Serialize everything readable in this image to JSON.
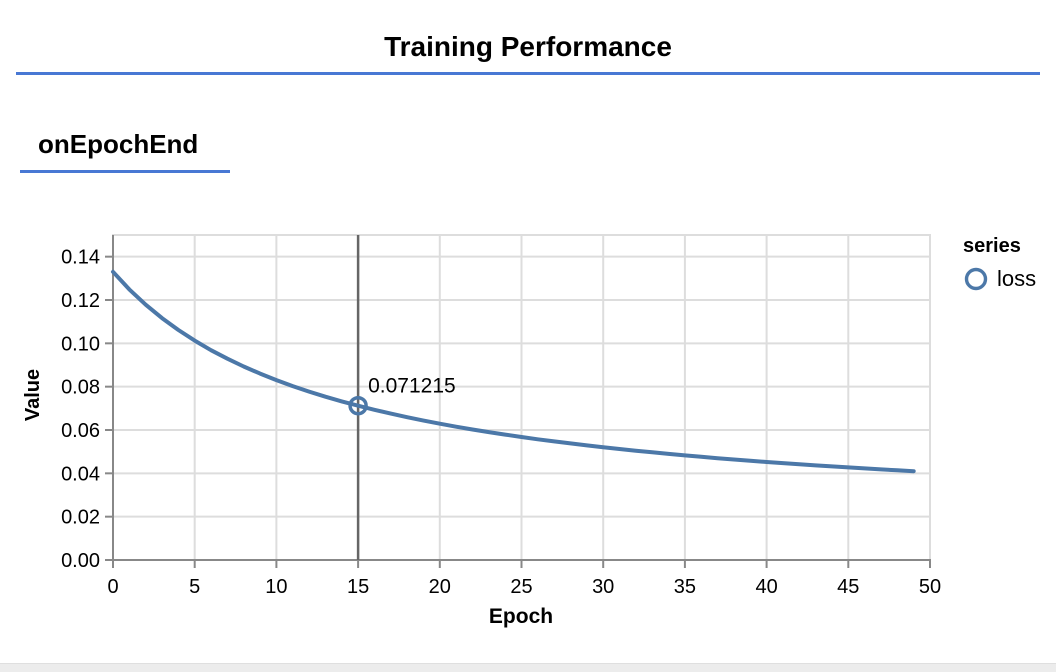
{
  "page": {
    "title": "Training Performance",
    "section_label": "onEpochEnd"
  },
  "colors": {
    "accent_rule": "#4878d4",
    "series_line": "#4c78a8",
    "grid": "#dddddd",
    "axis": "#888888",
    "cursor_rule": "#666666",
    "bottom_strip": "#ececec"
  },
  "chart_data": {
    "type": "line",
    "xlabel": "Epoch",
    "ylabel": "Value",
    "xlim": [
      0,
      50
    ],
    "ylim": [
      0,
      0.15
    ],
    "grid": true,
    "xticks": [
      0,
      5,
      10,
      15,
      20,
      25,
      30,
      35,
      40,
      45,
      50
    ],
    "xtick_labels": [
      "0",
      "5",
      "10",
      "15",
      "20",
      "25",
      "30",
      "35",
      "40",
      "45",
      "50"
    ],
    "yticks": [
      0,
      0.02,
      0.04,
      0.06,
      0.08,
      0.1,
      0.12,
      0.14
    ],
    "ytick_labels": [
      "0.00",
      "0.02",
      "0.04",
      "0.06",
      "0.08",
      "0.10",
      "0.12",
      "0.14"
    ],
    "legend": {
      "title": "series",
      "position": "right",
      "entries": [
        {
          "label": "loss",
          "color": "#4c78a8",
          "symbol": "open-circle"
        }
      ]
    },
    "series": [
      {
        "name": "loss",
        "color": "#4c78a8",
        "x": [
          0,
          1,
          2,
          3,
          4,
          5,
          6,
          7,
          8,
          9,
          10,
          11,
          12,
          13,
          14,
          15,
          16,
          17,
          18,
          19,
          20,
          21,
          22,
          23,
          24,
          25,
          26,
          27,
          28,
          29,
          30,
          31,
          32,
          33,
          34,
          35,
          36,
          37,
          38,
          39,
          40,
          41,
          42,
          43,
          44,
          45,
          46,
          47,
          48,
          49
        ],
        "values": [
          0.133,
          0.124891,
          0.117833,
          0.111632,
          0.106141,
          0.101244,
          0.096851,
          0.092886,
          0.089291,
          0.086016,
          0.08302,
          0.080269,
          0.077734,
          0.07539,
          0.073217,
          0.071215,
          0.069314,
          0.067554,
          0.065907,
          0.06436,
          0.062906,
          0.061537,
          0.060244,
          0.059023,
          0.057867,
          0.056771,
          0.05573,
          0.054741,
          0.0538,
          0.052903,
          0.052047,
          0.05123,
          0.050448,
          0.0497,
          0.048984,
          0.048297,
          0.047639,
          0.047006,
          0.046398,
          0.045813,
          0.045249,
          0.044707,
          0.044184,
          0.043679,
          0.043192,
          0.042722,
          0.042268,
          0.041829,
          0.041404,
          0.040992
        ]
      }
    ],
    "highlight": {
      "x": 15,
      "value": 0.071215,
      "label": "0.071215",
      "rule_color": "#666666"
    }
  }
}
